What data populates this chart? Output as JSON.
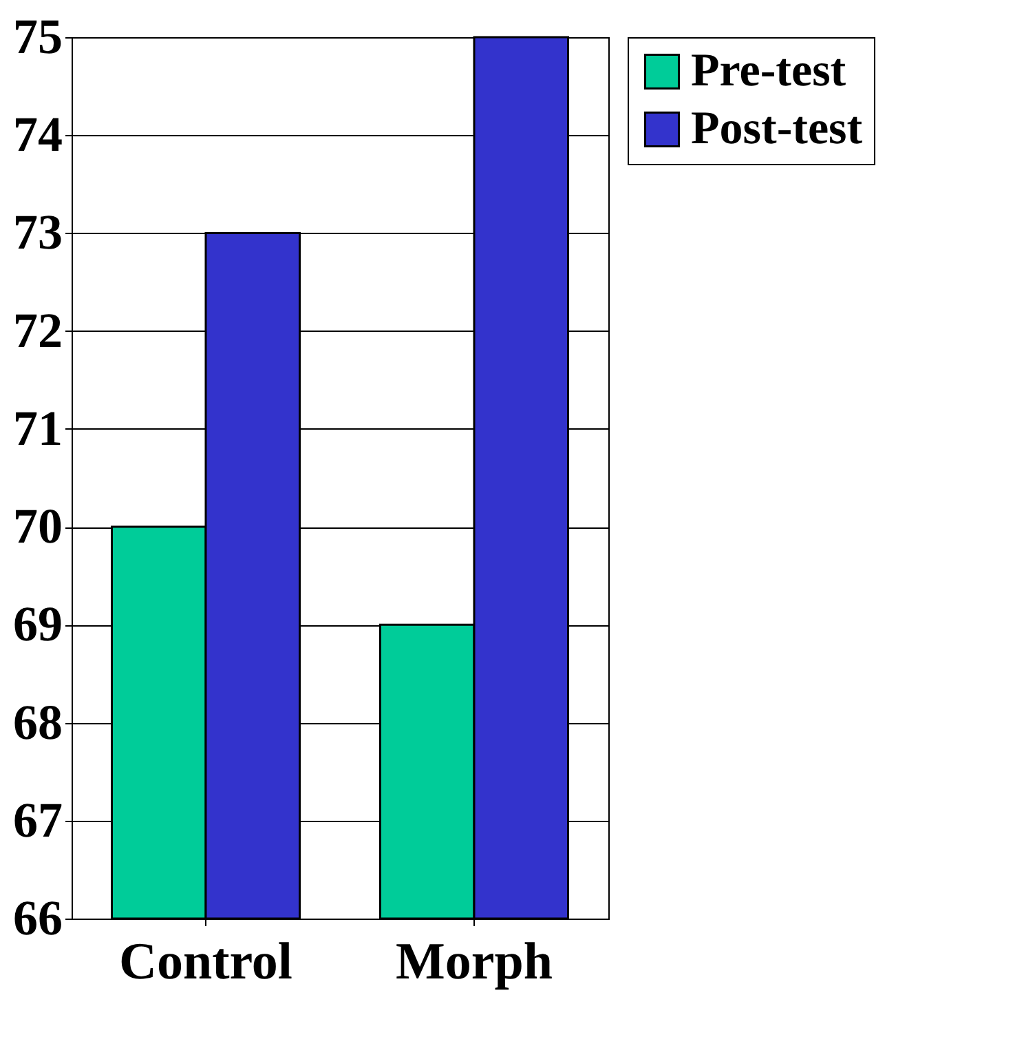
{
  "chart_data": {
    "type": "bar",
    "categories": [
      "Control",
      "Morph"
    ],
    "series": [
      {
        "name": "Pre-test",
        "color": "#00cc99",
        "values": [
          70,
          69
        ]
      },
      {
        "name": "Post-test",
        "color": "#3333cc",
        "values": [
          73,
          75
        ]
      }
    ],
    "ylim": [
      66,
      75
    ],
    "yticks": [
      66,
      67,
      68,
      69,
      70,
      71,
      72,
      73,
      74,
      75
    ],
    "grid": "y",
    "legend": "right"
  }
}
